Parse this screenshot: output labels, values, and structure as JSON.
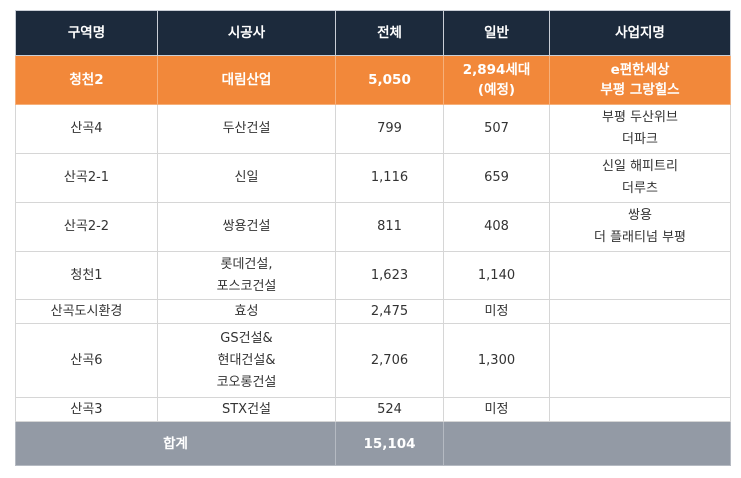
{
  "headers": [
    "구역명",
    "시공사",
    "전체",
    "일반",
    "사업지명"
  ],
  "highlight": {
    "district": "청천2",
    "builder": "대림산업",
    "total": "5,050",
    "general": [
      "2,894세대",
      "(예정)"
    ],
    "project": [
      "e편한세상",
      "부평 그랑힐스"
    ]
  },
  "rows": [
    {
      "district": "산곡4",
      "builder": [
        "두산건설"
      ],
      "total": "799",
      "general": "507",
      "project": [
        "부평 두산위브",
        "더파크"
      ]
    },
    {
      "district": "산곡2-1",
      "builder": [
        "신일"
      ],
      "total": "1,116",
      "general": "659",
      "project": [
        "신일 해피트리",
        "더루츠"
      ]
    },
    {
      "district": "산곡2-2",
      "builder": [
        "쌍용건설"
      ],
      "total": "811",
      "general": "408",
      "project": [
        "쌍용",
        "더 플래티넘 부평"
      ]
    },
    {
      "district": "청천1",
      "builder": [
        "롯데건설,",
        "포스코건설"
      ],
      "total": "1,623",
      "general": "1,140",
      "project": []
    },
    {
      "district": "산곡도시환경",
      "builder": [
        "효성"
      ],
      "total": "2,475",
      "general": "미정",
      "project": []
    },
    {
      "district": "산곡6",
      "builder": [
        "GS건설&",
        "현대건설&",
        "코오롱건설"
      ],
      "total": "2,706",
      "general": "1,300",
      "project": []
    },
    {
      "district": "산곡3",
      "builder": [
        "STX건설"
      ],
      "total": "524",
      "general": "미정",
      "project": []
    }
  ],
  "total_row": {
    "label": "합계",
    "total": "15,104"
  }
}
